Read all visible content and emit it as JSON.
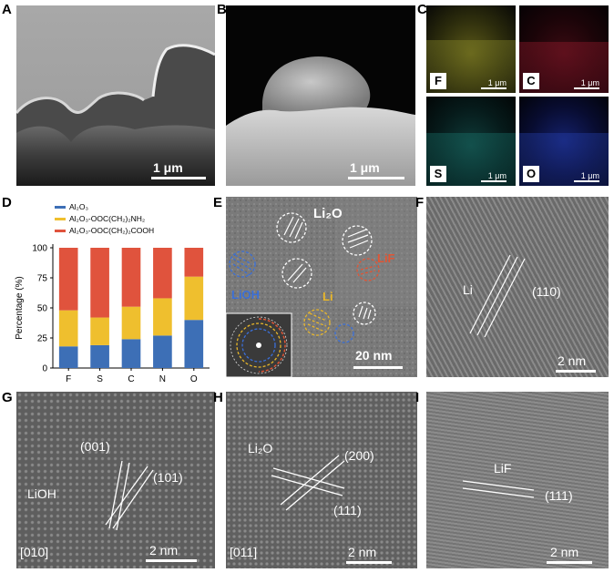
{
  "panels": {
    "A": {
      "letter": "A",
      "scale": "1 μm"
    },
    "B": {
      "letter": "B",
      "scale": "1 μm"
    },
    "C": {
      "letter": "C",
      "maps": [
        {
          "element": "F",
          "scale": "1 μm",
          "color": "#b9b53a"
        },
        {
          "element": "C",
          "scale": "1 μm",
          "color": "#c0283a"
        },
        {
          "element": "S",
          "scale": "1 μm",
          "color": "#1f8f8a"
        },
        {
          "element": "O",
          "scale": "1 μm",
          "color": "#2840b8"
        }
      ]
    },
    "D": {
      "letter": "D"
    },
    "E": {
      "letter": "E",
      "scale": "20 nm",
      "labels": {
        "li2o": "Li₂O",
        "lif": "LiF",
        "lioh": "LiOH",
        "li": "Li"
      }
    },
    "F": {
      "letter": "F",
      "scale": "2 nm",
      "labels": {
        "li": "Li",
        "plane": "(110)"
      }
    },
    "G": {
      "letter": "G",
      "scale": "2 nm",
      "labels": {
        "plane1": "(001)",
        "plane2": "(101)",
        "phase": "LiOH",
        "zone": "[010]"
      }
    },
    "H": {
      "letter": "H",
      "scale": "2 nm",
      "labels": {
        "phase": "Li₂O",
        "plane1": "(200)",
        "plane2": "(111)",
        "zone": "[011]"
      }
    },
    "I": {
      "letter": "I",
      "scale": "2 nm",
      "labels": {
        "phase": "LiF",
        "plane": "(111)"
      }
    }
  },
  "chart_data": {
    "type": "bar",
    "stacked": true,
    "categories": [
      "F",
      "S",
      "C",
      "N",
      "O"
    ],
    "ylabel": "Percentage (%)",
    "ylim": [
      0,
      100
    ],
    "yticks": [
      0,
      25,
      50,
      75,
      100
    ],
    "legend_position": "top-left",
    "series": [
      {
        "name": "Al₂O₃",
        "color": "#3d6fb6",
        "values": [
          18,
          19,
          24,
          27,
          40
        ]
      },
      {
        "name": "Al₂O₃-OOC(CH₂)₂NH₂",
        "color": "#efbf2e",
        "values": [
          30,
          23,
          27,
          31,
          36
        ]
      },
      {
        "name": "Al₂O₃-OOC(CH₂)₂COOH",
        "color": "#e0533d",
        "values": [
          52,
          58,
          49,
          42,
          24
        ]
      }
    ]
  }
}
